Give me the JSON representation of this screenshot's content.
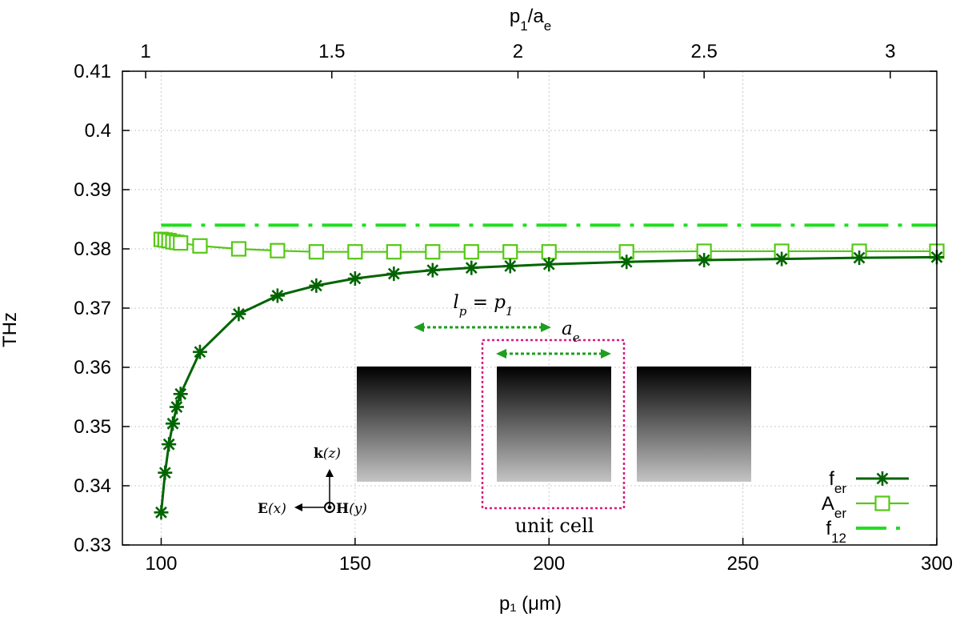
{
  "chart_data": {
    "type": "line",
    "xlabel": "p₁ (μm)",
    "ylabel": "THz",
    "x2label": "p₁/aₑ",
    "xlim": [
      90,
      300
    ],
    "ylim": [
      0.33,
      0.41
    ],
    "x_ticks": [
      100,
      150,
      200,
      250,
      300
    ],
    "y_ticks": [
      0.33,
      0.34,
      0.35,
      0.36,
      0.37,
      0.38,
      0.39,
      0.4,
      0.41
    ],
    "x2_ticks": [
      1,
      1.5,
      2,
      2.5,
      3
    ],
    "x2_scale_ratio": 96,
    "grid": true,
    "legend_position": "bottom-right",
    "series": [
      {
        "name": "f_er",
        "legend_base": "f",
        "legend_sub": "er",
        "color": "#006400",
        "marker": "asterisk",
        "x": [
          100,
          101,
          102,
          103,
          104,
          105,
          110,
          120,
          130,
          140,
          150,
          160,
          170,
          180,
          190,
          200,
          220,
          240,
          260,
          280,
          300
        ],
        "y": [
          0.3355,
          0.3422,
          0.347,
          0.3505,
          0.3533,
          0.3555,
          0.3626,
          0.369,
          0.3721,
          0.3738,
          0.375,
          0.3758,
          0.3764,
          0.3768,
          0.3771,
          0.3774,
          0.3778,
          0.3781,
          0.3783,
          0.3785,
          0.3786
        ]
      },
      {
        "name": "A_er",
        "legend_base": "A",
        "legend_sub": "er",
        "color": "#55c815",
        "marker": "square",
        "x": [
          100,
          101,
          102,
          103,
          104,
          105,
          110,
          120,
          130,
          140,
          150,
          160,
          170,
          180,
          190,
          200,
          220,
          240,
          260,
          280,
          300
        ],
        "y": [
          0.3816,
          0.3815,
          0.3814,
          0.3812,
          0.3811,
          0.381,
          0.3805,
          0.38,
          0.3797,
          0.3795,
          0.3795,
          0.3795,
          0.3795,
          0.3795,
          0.3795,
          0.3795,
          0.3795,
          0.3796,
          0.3796,
          0.3796,
          0.3796
        ]
      },
      {
        "name": "f_12",
        "legend_base": "f",
        "legend_sub": "12",
        "color": "#22dd22",
        "marker": "none",
        "line_style": "dash-dot",
        "x": [
          100,
          300
        ],
        "y": [
          0.384,
          0.384
        ]
      }
    ],
    "annotations": {
      "period_label": "l_p = p_1",
      "period_label_parts": [
        "l",
        "p",
        " = p",
        "1"
      ],
      "width_label_parts": [
        "a",
        "e"
      ],
      "unit_cell_label": "unit cell",
      "k_label_parts": [
        "k",
        "(z)"
      ],
      "e_label_parts": [
        "E",
        "(x)"
      ],
      "h_label_parts": [
        "H",
        "(y)"
      ],
      "colors": {
        "dimension_arrows": "#1f9e1f",
        "unit_cell_box": "#d81b84"
      }
    }
  }
}
